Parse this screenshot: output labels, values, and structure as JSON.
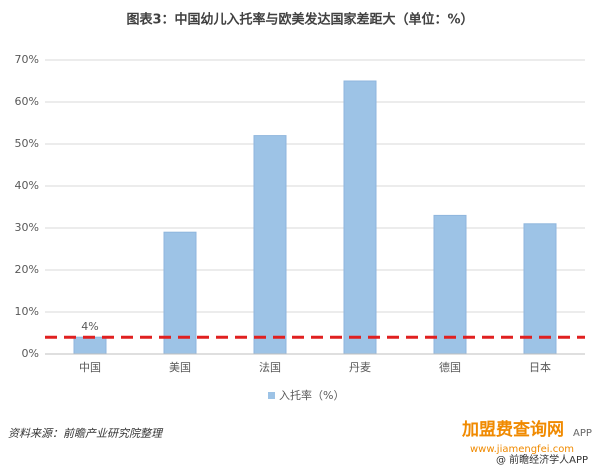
{
  "chart_data": {
    "type": "bar",
    "title": "图表3：中国幼儿入托率与欧美发达国家差距大（单位：%）",
    "categories": [
      "中国",
      "美国",
      "法国",
      "丹麦",
      "德国",
      "日本"
    ],
    "series": [
      {
        "name": "入托率（%）",
        "color": "#9dc3e6",
        "values": [
          4,
          29,
          52,
          65,
          33,
          31
        ],
        "value_labels": [
          "4%",
          null,
          null,
          null,
          null,
          null
        ]
      }
    ],
    "ylim": [
      0,
      70
    ],
    "yticks": [
      {
        "value": 0,
        "label": "0%"
      },
      {
        "value": 10,
        "label": "10%"
      },
      {
        "value": 20,
        "label": "20%"
      },
      {
        "value": 30,
        "label": "30%"
      },
      {
        "value": 40,
        "label": "40%"
      },
      {
        "value": 50,
        "label": "50%"
      },
      {
        "value": 60,
        "label": "60%"
      },
      {
        "value": 70,
        "label": "70%"
      }
    ],
    "grid": true,
    "reference_line": {
      "value": 4,
      "color": "#e02020"
    },
    "legend": "bottom",
    "source": "资料来源：前瞻产业研究院整理"
  },
  "watermarks": {
    "site": "加盟费查询网",
    "url": "www.jiamengfei.com",
    "app": "APP",
    "brand": "@ 前瞻经济学人APP"
  }
}
